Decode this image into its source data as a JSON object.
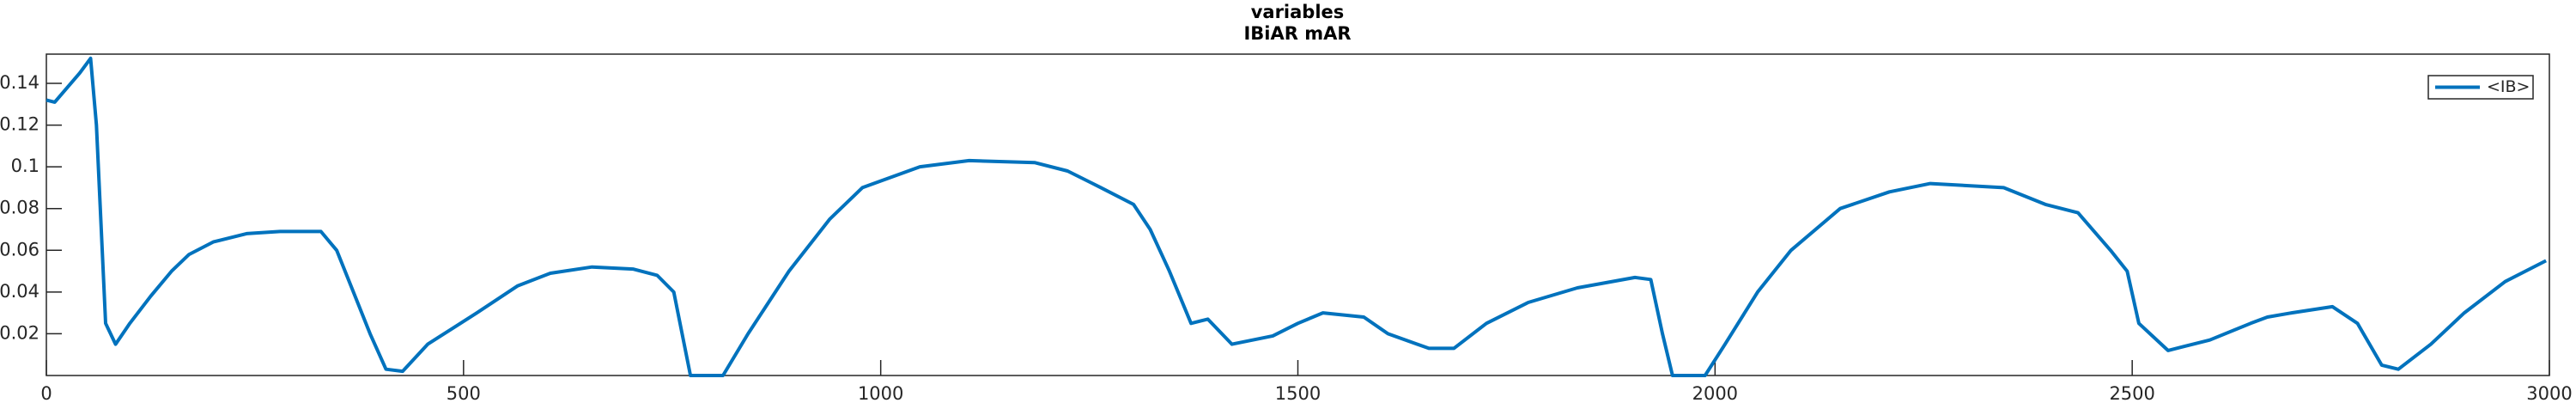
{
  "chart_data": {
    "type": "line",
    "title": "variables",
    "subtitle": "IBiAR mAR",
    "x": [
      0,
      10,
      25,
      40,
      53,
      60,
      71,
      83,
      100,
      125,
      150,
      171,
      200,
      240,
      280,
      329,
      348,
      368,
      388,
      407,
      427,
      457,
      516,
      565,
      604,
      654,
      703,
      732,
      752,
      772,
      811,
      841,
      890,
      939,
      978,
      1047,
      1106,
      1185,
      1224,
      1264,
      1303,
      1323,
      1346,
      1372,
      1392,
      1421,
      1470,
      1500,
      1530,
      1579,
      1608,
      1657,
      1687,
      1726,
      1776,
      1835,
      1904,
      1923,
      1937,
      1949,
      1988,
      2012,
      2051,
      2091,
      2150,
      2209,
      2258,
      2346,
      2396,
      2435,
      2474,
      2494,
      2508,
      2543,
      2593,
      2642,
      2662,
      2691,
      2740,
      2770,
      2799,
      2819,
      2858,
      2898,
      2947,
      2996
    ],
    "series": [
      {
        "name": "<IB>",
        "color": "#0072bd",
        "values": [
          0.132,
          0.131,
          0.138,
          0.145,
          0.152,
          0.12,
          0.025,
          0.015,
          0.025,
          0.038,
          0.05,
          0.058,
          0.064,
          0.068,
          0.069,
          0.069,
          0.06,
          0.04,
          0.02,
          0.003,
          0.002,
          0.015,
          0.03,
          0.043,
          0.049,
          0.052,
          0.051,
          0.048,
          0.04,
          0.0,
          0.0,
          0.02,
          0.05,
          0.075,
          0.09,
          0.1,
          0.103,
          0.102,
          0.098,
          0.09,
          0.082,
          0.07,
          0.05,
          0.025,
          0.027,
          0.015,
          0.019,
          0.025,
          0.03,
          0.028,
          0.02,
          0.013,
          0.013,
          0.025,
          0.035,
          0.042,
          0.047,
          0.046,
          0.02,
          0.0,
          0.0,
          0.015,
          0.04,
          0.06,
          0.08,
          0.088,
          0.092,
          0.09,
          0.082,
          0.078,
          0.06,
          0.05,
          0.025,
          0.012,
          0.017,
          0.025,
          0.028,
          0.03,
          0.033,
          0.025,
          0.005,
          0.003,
          0.015,
          0.03,
          0.045,
          0.055
        ]
      }
    ],
    "xlim": [
      0,
      3000
    ],
    "xticks": [
      0,
      500,
      1000,
      1500,
      2000,
      2500,
      3000
    ],
    "ylim": [
      0,
      0.154
    ],
    "yticks": [
      0.02,
      0.04,
      0.06,
      0.08,
      0.1,
      0.12,
      0.14
    ],
    "legend": "upper right"
  }
}
